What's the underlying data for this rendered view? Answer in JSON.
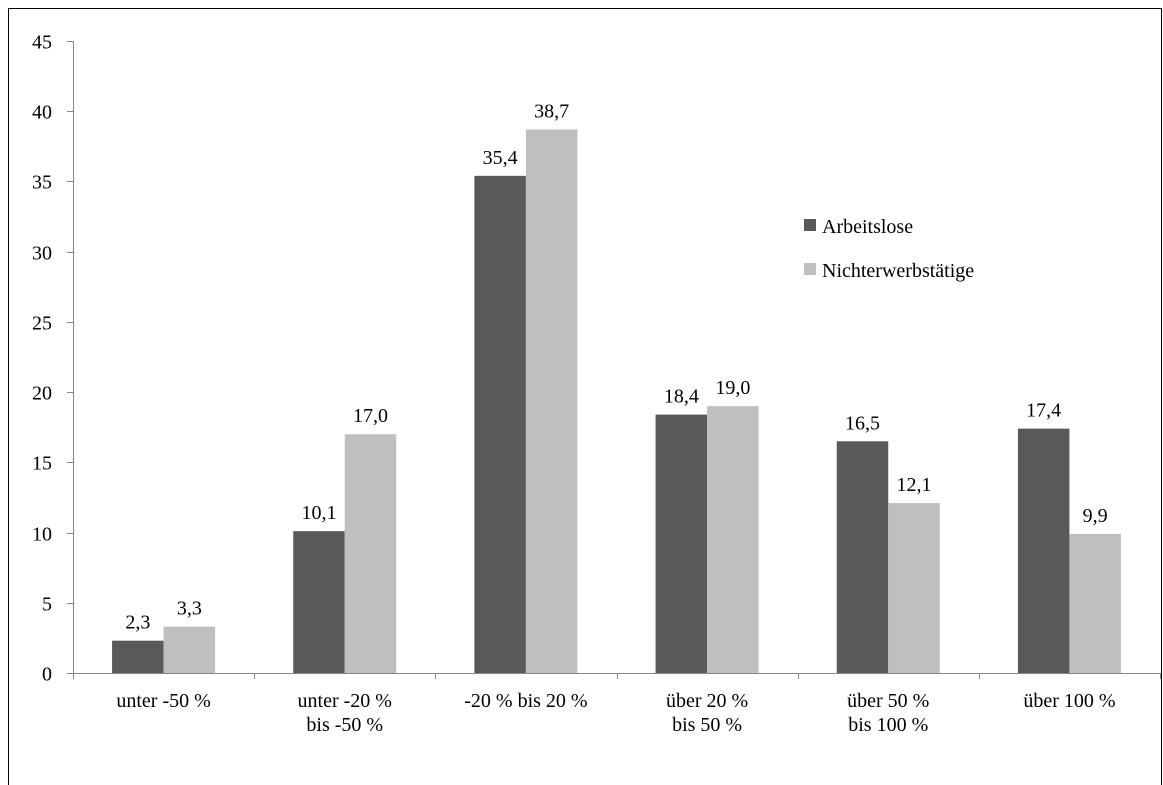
{
  "chart_data": {
    "type": "bar",
    "categories": [
      "unter -50 %",
      "unter -20 %\nbis -50 %",
      "-20 % bis 20 %",
      "über 20 %\nbis 50 %",
      "über 50 %\nbis 100 %",
      "über 100 %"
    ],
    "series": [
      {
        "name": "Arbeitslose",
        "color": "#595959",
        "values": [
          2.3,
          10.1,
          35.4,
          18.4,
          16.5,
          17.4
        ],
        "value_labels": [
          "2,3",
          "10,1",
          "35,4",
          "18,4",
          "16,5",
          "17,4"
        ]
      },
      {
        "name": "Nichterwerbstätige",
        "color": "#bfbfbf",
        "values": [
          3.3,
          17.0,
          38.7,
          19.0,
          12.1,
          9.9
        ],
        "value_labels": [
          "3,3",
          "17,0",
          "38,7",
          "19,0",
          "12,1",
          "9,9"
        ]
      }
    ],
    "ylim": [
      0,
      45
    ],
    "yticks": [
      0,
      5,
      10,
      15,
      20,
      25,
      30,
      35,
      40,
      45
    ]
  }
}
